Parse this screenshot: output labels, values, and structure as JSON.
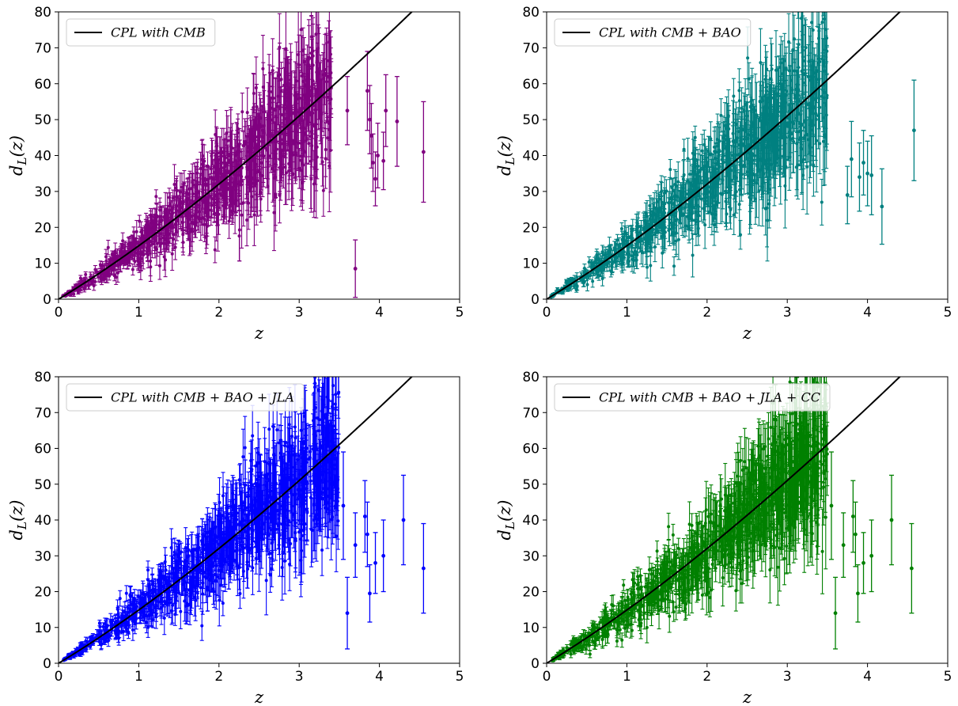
{
  "figure": {
    "colors": {
      "model_line": "#000000"
    }
  },
  "chart_data": [
    {
      "type": "scatter",
      "panel": "top-left",
      "xlabel": "z",
      "ylabel": "d_L(z)",
      "xlim": [
        0,
        5
      ],
      "ylim": [
        0,
        80
      ],
      "xticks": [
        "0",
        "1",
        "2",
        "3",
        "4",
        "5"
      ],
      "yticks": [
        "0",
        "10",
        "20",
        "30",
        "40",
        "50",
        "60",
        "70",
        "80"
      ],
      "grid": false,
      "legend": {
        "placement": "top-left",
        "entries": [
          "CPL with CMB"
        ]
      },
      "series": [
        {
          "name": "CPL with CMB",
          "kind": "model-line",
          "color": "#000000"
        },
        {
          "kind": "mock-data-errorbars",
          "color": "#800080",
          "x": [
            3.6,
            3.85,
            3.88,
            3.9,
            3.92,
            3.95,
            4.05,
            4.08,
            4.22,
            4.55,
            3.7,
            3.98
          ],
          "y": [
            52.5,
            58.0,
            50.0,
            45.5,
            38.0,
            33.5,
            38.5,
            52.5,
            49.5,
            41.0,
            8.5,
            40.0
          ],
          "err": [
            9.5,
            11.0,
            9.5,
            9.0,
            8.0,
            7.5,
            8.0,
            10.0,
            12.5,
            14.0,
            8.0,
            9.0
          ],
          "dense_band": {
            "n_points": 900,
            "z_range": [
              0.05,
              3.4
            ],
            "scatter_frac": 0.25
          }
        }
      ]
    },
    {
      "type": "scatter",
      "panel": "top-right",
      "xlabel": "z",
      "ylabel": "d_L(z)",
      "xlim": [
        0,
        5
      ],
      "ylim": [
        0,
        80
      ],
      "xticks": [
        "0",
        "1",
        "2",
        "3",
        "4",
        "5"
      ],
      "yticks": [
        "0",
        "10",
        "20",
        "30",
        "40",
        "50",
        "60",
        "70",
        "80"
      ],
      "grid": false,
      "legend": {
        "placement": "top-left",
        "entries": [
          "CPL with CMB + BAO"
        ]
      },
      "series": [
        {
          "name": "CPL with CMB + BAO",
          "kind": "model-line",
          "color": "#000000"
        },
        {
          "kind": "mock-data-errorbars",
          "color": "#008080",
          "x": [
            3.8,
            3.9,
            4.0,
            4.05,
            4.18,
            4.58,
            3.75,
            3.95
          ],
          "y": [
            39.0,
            34.0,
            35.0,
            34.5,
            25.8,
            47.0,
            29.0,
            38.0
          ],
          "err": [
            10.5,
            9.5,
            9.0,
            11.0,
            10.5,
            14.0,
            8.0,
            9.0
          ],
          "dense_band": {
            "n_points": 900,
            "z_range": [
              0.05,
              3.5
            ],
            "scatter_frac": 0.25
          }
        }
      ]
    },
    {
      "type": "scatter",
      "panel": "bottom-left",
      "xlabel": "z",
      "ylabel": "d_L(z)",
      "xlim": [
        0,
        5
      ],
      "ylim": [
        0,
        80
      ],
      "xticks": [
        "0",
        "1",
        "2",
        "3",
        "4",
        "5"
      ],
      "yticks": [
        "0",
        "10",
        "20",
        "30",
        "40",
        "50",
        "60",
        "70",
        "80"
      ],
      "grid": false,
      "legend": {
        "placement": "top-left",
        "entries": [
          "CPL with CMB + BAO + JLA"
        ]
      },
      "series": [
        {
          "name": "CPL with CMB + BAO + JLA",
          "kind": "model-line",
          "color": "#000000"
        },
        {
          "kind": "mock-data-errorbars",
          "color": "#0000ff",
          "x": [
            3.55,
            3.6,
            3.82,
            3.85,
            3.88,
            4.05,
            4.3,
            4.55,
            3.7,
            3.95
          ],
          "y": [
            44.0,
            14.0,
            41.0,
            36.0,
            19.5,
            30.0,
            40.0,
            26.5,
            33.0,
            28.0
          ],
          "err": [
            15.0,
            10.0,
            10.0,
            9.0,
            8.0,
            10.0,
            12.5,
            12.5,
            9.0,
            8.5
          ],
          "dense_band": {
            "n_points": 1000,
            "z_range": [
              0.05,
              3.5
            ],
            "scatter_frac": 0.25
          }
        }
      ]
    },
    {
      "type": "scatter",
      "panel": "bottom-right",
      "xlabel": "z",
      "ylabel": "d_L(z)",
      "xlim": [
        0,
        5
      ],
      "ylim": [
        0,
        80
      ],
      "xticks": [
        "0",
        "1",
        "2",
        "3",
        "4",
        "5"
      ],
      "yticks": [
        "0",
        "10",
        "20",
        "30",
        "40",
        "50",
        "60",
        "70",
        "80"
      ],
      "grid": false,
      "legend": {
        "placement": "top-left",
        "entries": [
          "CPL with CMB + BAO + JLA + CC"
        ]
      },
      "series": [
        {
          "name": "CPL with CMB + BAO + JLA + CC",
          "kind": "model-line",
          "color": "#000000"
        },
        {
          "kind": "mock-data-errorbars",
          "color": "#008000",
          "x": [
            3.55,
            3.6,
            3.82,
            3.85,
            3.88,
            4.05,
            4.3,
            4.55,
            3.7,
            3.95
          ],
          "y": [
            44.0,
            14.0,
            41.0,
            36.0,
            19.5,
            30.0,
            40.0,
            26.5,
            33.0,
            28.0
          ],
          "err": [
            15.0,
            10.0,
            10.0,
            9.0,
            8.0,
            10.0,
            12.5,
            12.5,
            9.0,
            8.5
          ],
          "dense_band": {
            "n_points": 1000,
            "z_range": [
              0.05,
              3.5
            ],
            "scatter_frac": 0.25
          }
        }
      ]
    }
  ]
}
